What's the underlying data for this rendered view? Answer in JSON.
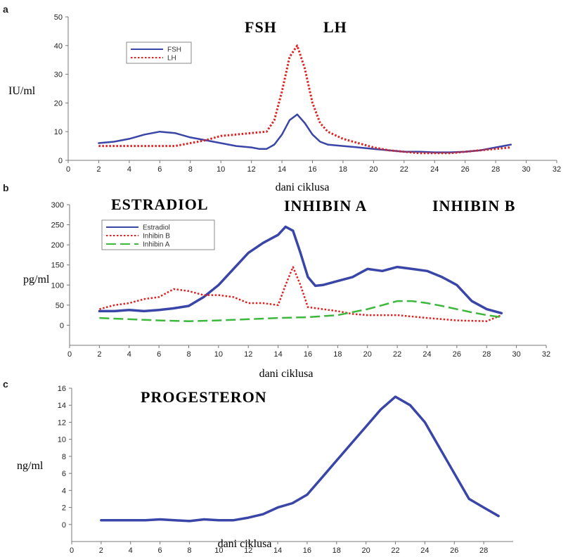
{
  "chart_data": [
    {
      "panel": "a",
      "type": "line",
      "header": [
        "FSH",
        "LH"
      ],
      "ylabel": "IU/ml",
      "xlabel": "dani ciklusa",
      "xlim": [
        0,
        32
      ],
      "ylim": [
        0,
        50
      ],
      "xticks": [
        0,
        2,
        4,
        6,
        8,
        10,
        12,
        14,
        16,
        18,
        20,
        22,
        24,
        26,
        28,
        30,
        32
      ],
      "yticks": [
        0,
        10,
        20,
        30,
        40,
        50
      ],
      "legend_position": "top-left",
      "series": [
        {
          "name": "FSH",
          "style": "solid",
          "color": "#3a45a8",
          "width": 2.5,
          "x": [
            2,
            3,
            4,
            5,
            6,
            7,
            8,
            9,
            10,
            11,
            12,
            12.5,
            13,
            13.5,
            14,
            14.5,
            15,
            15.5,
            16,
            16.5,
            17,
            18,
            19,
            20,
            21,
            22,
            23,
            24,
            25,
            26,
            27,
            28,
            29
          ],
          "y": [
            6,
            6.5,
            7.5,
            9,
            10,
            9.5,
            8,
            7,
            6,
            5,
            4.5,
            4,
            4,
            5.5,
            9,
            14,
            16,
            13,
            9,
            6.5,
            5.5,
            5,
            4.5,
            4,
            3.5,
            3,
            3,
            2.8,
            2.8,
            3,
            3.5,
            4.5,
            5.5
          ]
        },
        {
          "name": "LH",
          "style": "dotted",
          "color": "#e02020",
          "width": 3,
          "x": [
            2,
            4,
            6,
            7,
            8,
            9,
            10,
            11,
            12,
            13,
            13.5,
            14,
            14.5,
            15,
            15.5,
            16,
            16.5,
            17,
            18,
            19,
            20,
            21,
            22,
            23,
            24,
            25,
            26,
            27,
            28,
            29
          ],
          "y": [
            5,
            5,
            5,
            5,
            6,
            7,
            8.5,
            9,
            9.5,
            10,
            14,
            24,
            36,
            40,
            32,
            20,
            13,
            10,
            7.5,
            6,
            4.5,
            3.5,
            3,
            2.5,
            2.5,
            2.5,
            3,
            3.5,
            4,
            4.5
          ]
        }
      ]
    },
    {
      "panel": "b",
      "type": "line",
      "header": [
        "ESTRADIOL",
        "INHIBIN A",
        "INHIBIN B"
      ],
      "ylabel": "pg/ml",
      "xlabel": "dani ciklusa",
      "xlim": [
        0,
        32
      ],
      "ylim": [
        -50,
        300
      ],
      "xticks": [
        0,
        2,
        4,
        6,
        8,
        10,
        12,
        14,
        16,
        18,
        20,
        22,
        24,
        26,
        28,
        30,
        32
      ],
      "yticks": [
        0,
        50,
        100,
        150,
        200,
        250,
        300
      ],
      "legend_position": "top-left",
      "series": [
        {
          "name": "Estradiol",
          "style": "solid",
          "color": "#3a45a8",
          "width": 3.5,
          "x": [
            2,
            3,
            4,
            5,
            6,
            7,
            8,
            9,
            10,
            11,
            12,
            13,
            14,
            14.5,
            15,
            15.5,
            16,
            16.5,
            17,
            18,
            19,
            20,
            21,
            22,
            23,
            24,
            25,
            26,
            27,
            28,
            29
          ],
          "y": [
            35,
            35,
            38,
            35,
            38,
            42,
            48,
            70,
            100,
            140,
            180,
            205,
            225,
            245,
            235,
            180,
            120,
            98,
            100,
            110,
            120,
            140,
            135,
            145,
            140,
            135,
            120,
            100,
            60,
            40,
            30
          ]
        },
        {
          "name": "Inhibin B",
          "style": "dotted",
          "color": "#e02020",
          "width": 2.5,
          "x": [
            2,
            3,
            4,
            5,
            6,
            7,
            8,
            9,
            10,
            11,
            12,
            13,
            14,
            14.5,
            15,
            15.5,
            16,
            17,
            18,
            19,
            20,
            22,
            24,
            26,
            28,
            29
          ],
          "y": [
            40,
            50,
            55,
            65,
            70,
            90,
            85,
            75,
            75,
            70,
            55,
            55,
            50,
            100,
            145,
            100,
            45,
            40,
            35,
            28,
            25,
            25,
            18,
            12,
            10,
            25
          ]
        },
        {
          "name": "Inhibin A",
          "style": "dashed",
          "color": "#3cb83c",
          "width": 2.5,
          "x": [
            2,
            4,
            6,
            8,
            10,
            12,
            14,
            16,
            18,
            20,
            21,
            22,
            23,
            24,
            25,
            26,
            27,
            28,
            29
          ],
          "y": [
            18,
            15,
            12,
            10,
            12,
            15,
            18,
            20,
            25,
            40,
            50,
            60,
            60,
            55,
            48,
            40,
            32,
            25,
            20
          ]
        }
      ]
    },
    {
      "panel": "c",
      "type": "line",
      "header": [
        "PROGESTERON"
      ],
      "ylabel": "ng/ml",
      "xlabel": "dani ciklusa",
      "xlim": [
        0,
        30
      ],
      "ylim": [
        -2,
        16
      ],
      "xticks": [
        0,
        2,
        4,
        6,
        8,
        10,
        12,
        14,
        16,
        18,
        20,
        22,
        24,
        26,
        28
      ],
      "yticks": [
        0,
        2,
        4,
        6,
        8,
        10,
        12,
        14,
        16
      ],
      "series": [
        {
          "name": "",
          "style": "solid",
          "color": "#3a45a8",
          "width": 3.5,
          "x": [
            2,
            4,
            5,
            6,
            7,
            8,
            9,
            10,
            11,
            12,
            13,
            14,
            15,
            16,
            17,
            18,
            19,
            20,
            21,
            22,
            23,
            24,
            25,
            26,
            27,
            28,
            29
          ],
          "y": [
            0.5,
            0.5,
            0.5,
            0.6,
            0.5,
            0.4,
            0.6,
            0.5,
            0.5,
            0.8,
            1.2,
            2,
            2.5,
            3.5,
            5.5,
            7.5,
            9.5,
            11.5,
            13.5,
            15,
            14,
            12,
            9,
            6,
            3,
            2,
            1
          ]
        }
      ]
    }
  ]
}
